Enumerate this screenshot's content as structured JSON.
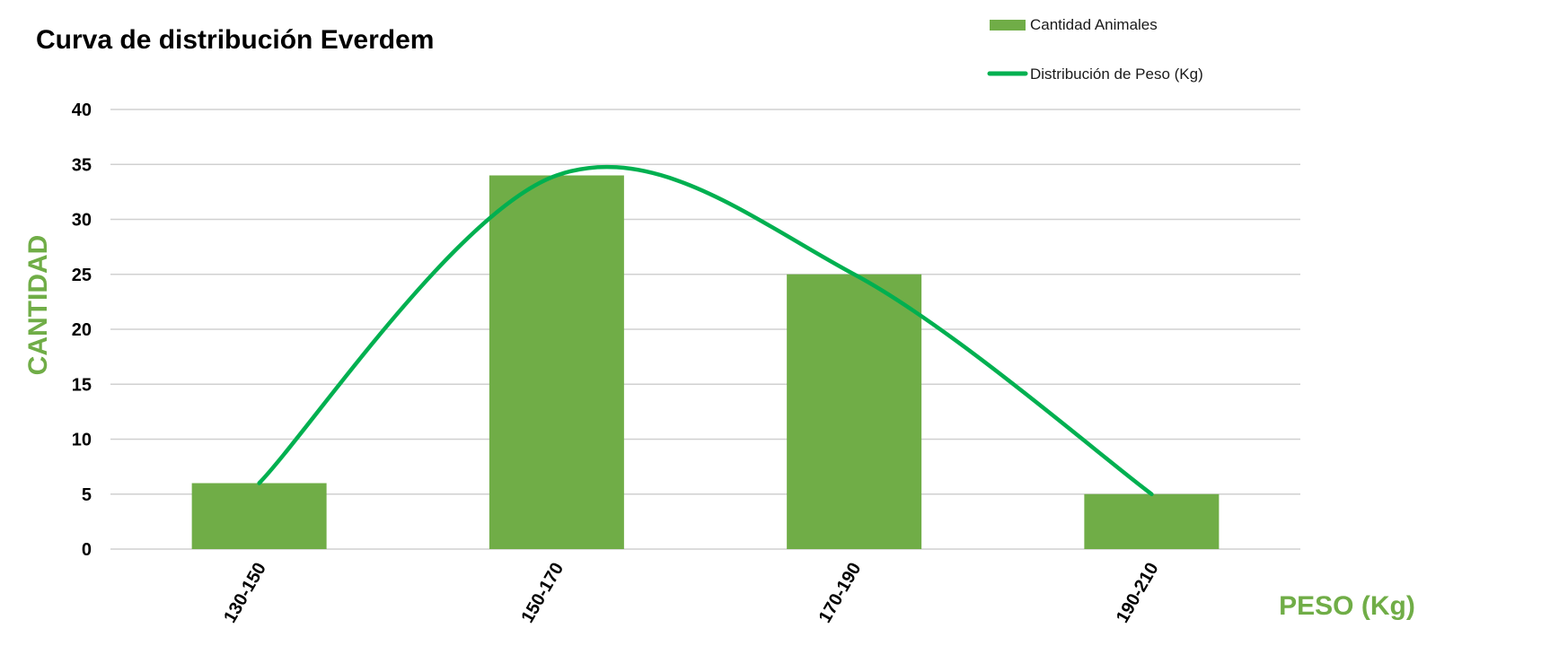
{
  "chart_data": {
    "type": "bar",
    "title": "Curva de distribución Everdem",
    "xlabel": "PESO (Kg)",
    "ylabel": "CANTIDAD",
    "categories": [
      "130-150",
      "150-170",
      "170-190",
      "190-210"
    ],
    "ylim": [
      0,
      40
    ],
    "yticks": [
      0,
      5,
      10,
      15,
      20,
      25,
      30,
      35,
      40
    ],
    "grid": true,
    "legend_position": "top-right",
    "series": [
      {
        "name": "Cantidad Animales",
        "type": "bar",
        "values": [
          6,
          34,
          25,
          5
        ],
        "color": "#70ad47"
      },
      {
        "name": "Distribución de Peso (Kg)",
        "type": "line",
        "smooth": true,
        "values": [
          6,
          34,
          25,
          5
        ],
        "color": "#00b050"
      }
    ],
    "axis_title_color": "#70ad47"
  }
}
